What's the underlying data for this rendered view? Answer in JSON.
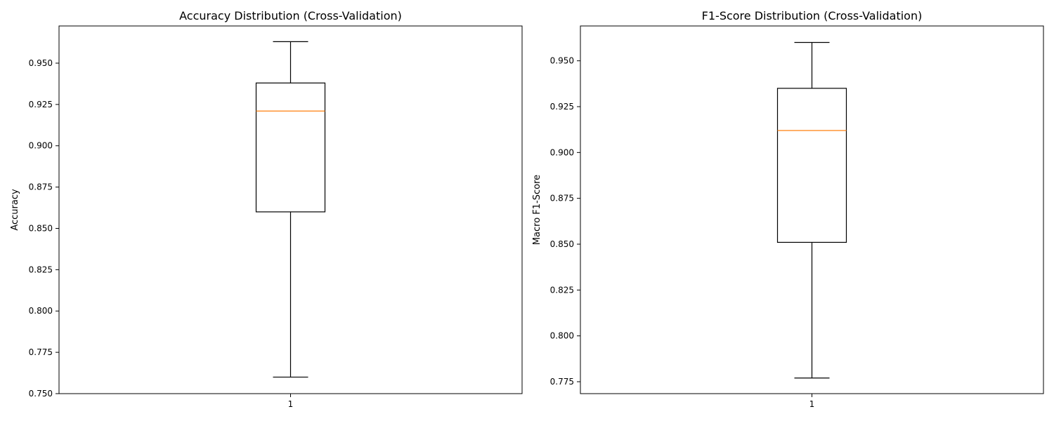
{
  "chart_data": [
    {
      "type": "box",
      "title": "Accuracy Distribution (Cross-Validation)",
      "xlabel": "",
      "ylabel": "Accuracy",
      "categories": [
        "1"
      ],
      "ylim": [
        0.75,
        0.9725
      ],
      "yticks": [
        0.75,
        0.775,
        0.8,
        0.825,
        0.85,
        0.875,
        0.9,
        0.925,
        0.95
      ],
      "ytick_labels": [
        "0.750",
        "0.775",
        "0.800",
        "0.825",
        "0.850",
        "0.875",
        "0.900",
        "0.925",
        "0.950"
      ],
      "box": {
        "whisker_low": 0.76,
        "q1": 0.86,
        "median": 0.921,
        "q3": 0.938,
        "whisker_high": 0.963
      },
      "median_color": "#ff7f0e",
      "box_color": "#000000"
    },
    {
      "type": "box",
      "title": "F1-Score Distribution (Cross-Validation)",
      "xlabel": "",
      "ylabel": "Macro F1-Score",
      "categories": [
        "1"
      ],
      "ylim": [
        0.7685,
        0.969
      ],
      "yticks": [
        0.775,
        0.8,
        0.825,
        0.85,
        0.875,
        0.9,
        0.925,
        0.95
      ],
      "ytick_labels": [
        "0.775",
        "0.800",
        "0.825",
        "0.850",
        "0.875",
        "0.900",
        "0.925",
        "0.950"
      ],
      "box": {
        "whisker_low": 0.777,
        "q1": 0.851,
        "median": 0.912,
        "q3": 0.935,
        "whisker_high": 0.96
      },
      "median_color": "#ff7f0e",
      "box_color": "#000000"
    }
  ]
}
